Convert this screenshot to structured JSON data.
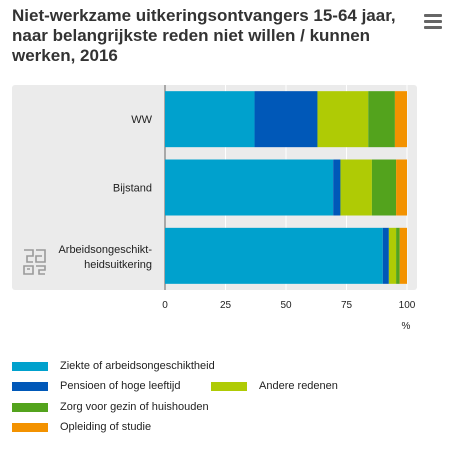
{
  "title": "Niet-werkzame uitkeringsontvangers 15-64 jaar, naar belangrijkste reden niet willen / kunnen werken, 2016",
  "menu_icon": "hamburger-menu-icon",
  "logo_icon": "cbs-logo-icon",
  "colors": {
    "plot_background": "#ebebeb",
    "gridline": "#ffffff",
    "axis": "#666666"
  },
  "chart_data": {
    "type": "bar",
    "orientation": "horizontal",
    "stacked": true,
    "title": "Niet-werkzame uitkeringsontvangers 15-64 jaar, naar belangrijkste reden niet willen / kunnen werken, 2016",
    "categories": [
      "WW",
      "Bijstand",
      "Arbeidsongeschikt-heidsuitkering"
    ],
    "category_label_lines": [
      [
        "WW"
      ],
      [
        "Bijstand"
      ],
      [
        "Arbeidsongeschikt-",
        "heidsuitkering"
      ]
    ],
    "xlim": [
      0,
      100
    ],
    "xticks": [
      "0",
      "25",
      "50",
      "75",
      "100"
    ],
    "xlabel": "%",
    "ylabel": "",
    "grid": true,
    "legend_position": "bottom",
    "series": [
      {
        "name": "Ziekte of arbeidsongeschiktheid",
        "color": "#00a1cd",
        "values": [
          37,
          69.5,
          90
        ]
      },
      {
        "name": "Pensioen of hoge leeftijd",
        "color": "#0058b8",
        "values": [
          26,
          3,
          2.5
        ]
      },
      {
        "name": "Andere redenen",
        "color": "#afcb05",
        "values": [
          21,
          13,
          3
        ]
      },
      {
        "name": "Zorg voor gezin of huishouden",
        "color": "#53a31d",
        "values": [
          11,
          10,
          1.5
        ]
      },
      {
        "name": "Opleiding of studie",
        "color": "#f39200",
        "values": [
          5,
          4.5,
          3
        ]
      }
    ]
  }
}
